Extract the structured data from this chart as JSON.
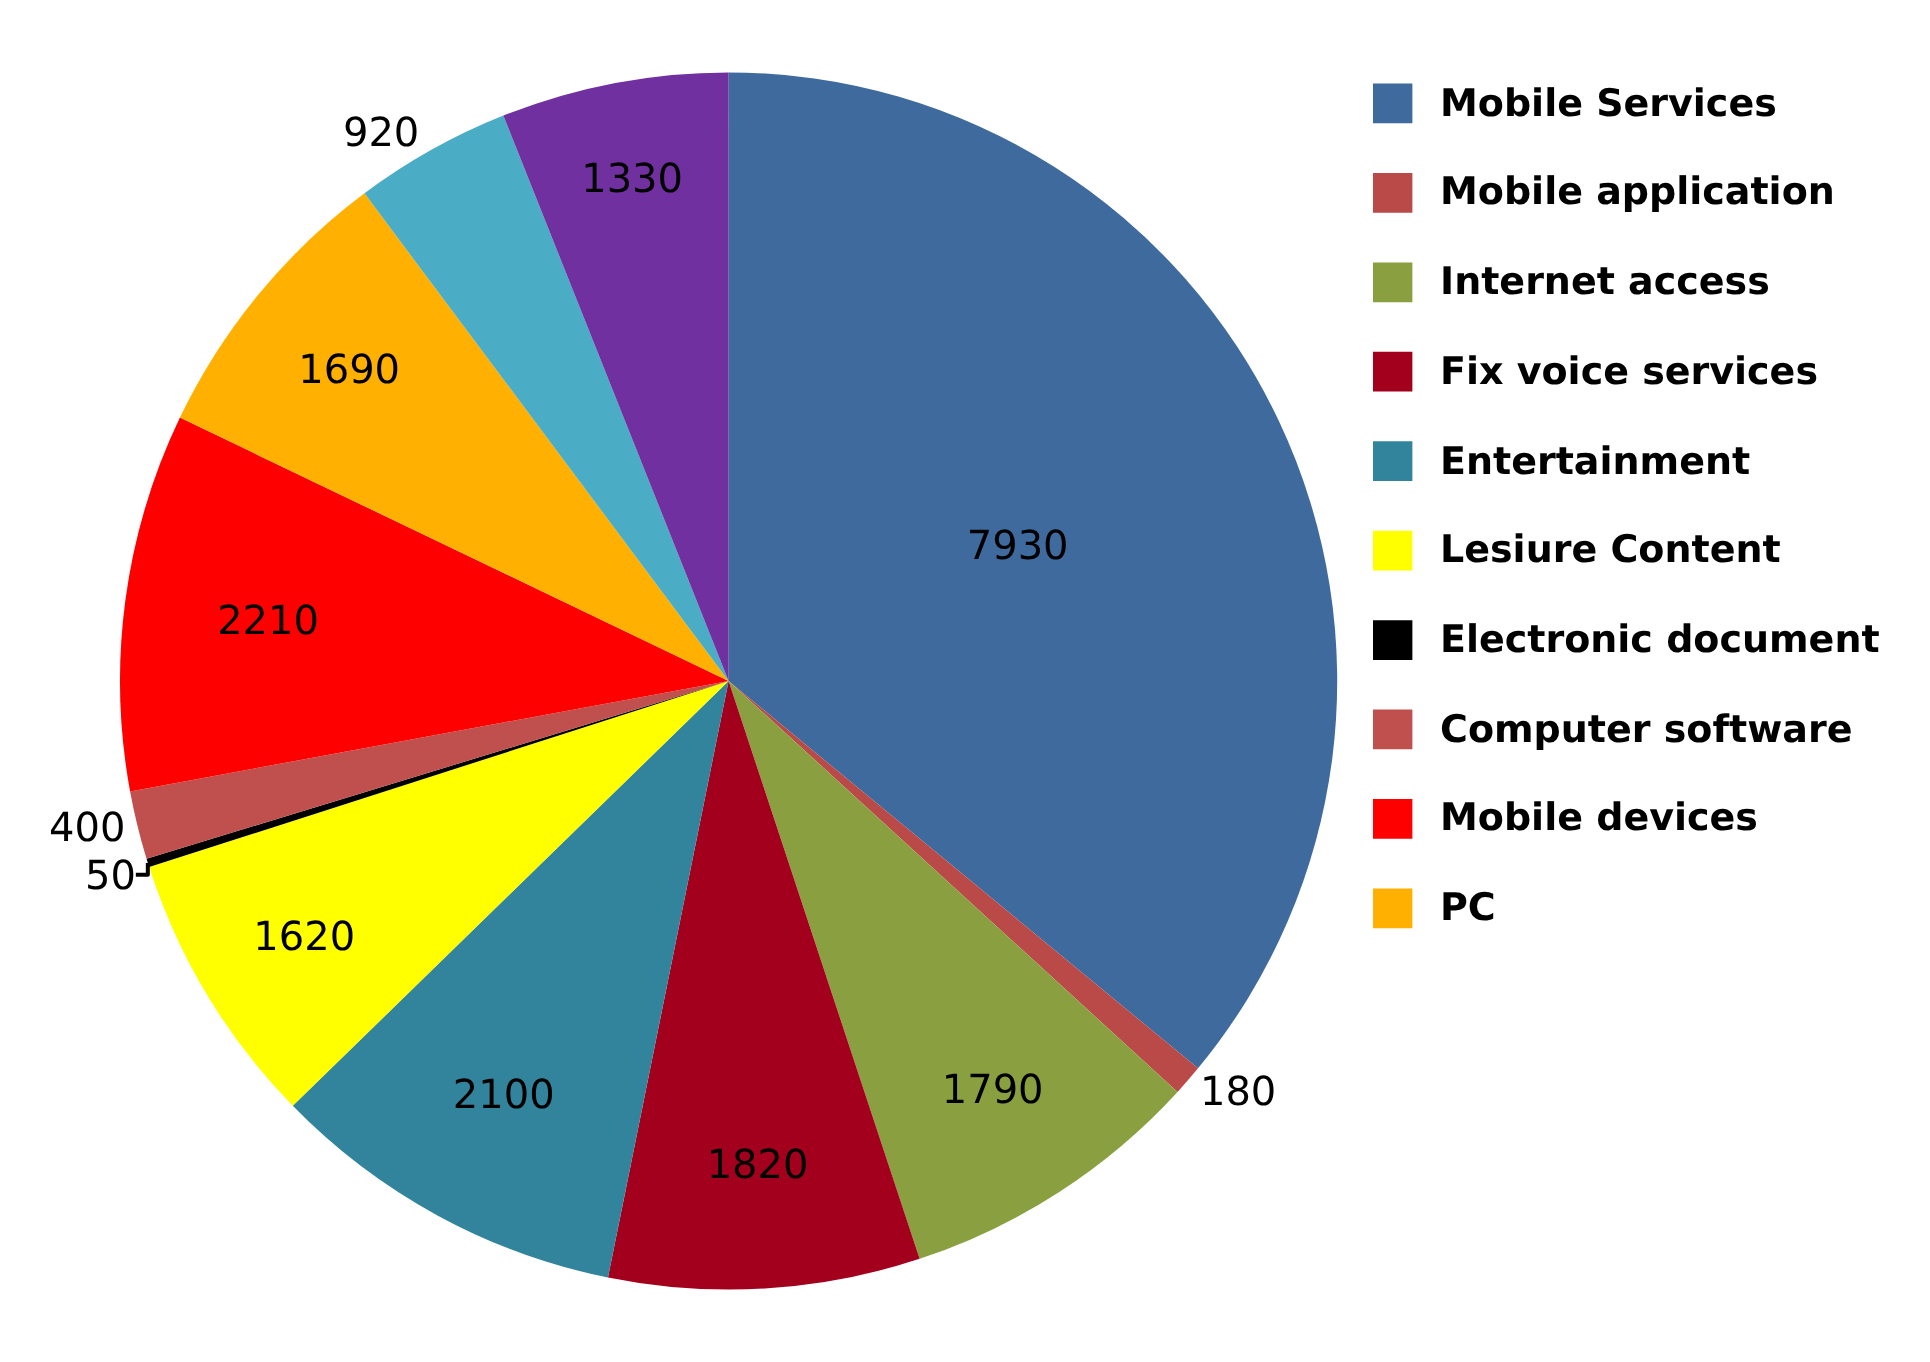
{
  "chart_data": {
    "type": "pie",
    "categories": [
      "Mobile Services",
      "Mobile application",
      "Internet access",
      "Fix voice services",
      "Entertainment",
      "Lesiure Content",
      "Electronic document",
      "Computer software",
      "Mobile devices",
      "PC",
      null,
      null
    ],
    "values": [
      7930,
      180,
      1790,
      1820,
      2100,
      1620,
      50,
      400,
      2210,
      1690,
      920,
      1330
    ],
    "colors": [
      "#3f6a9e",
      "#b94a48",
      "#8aa040",
      "#a3001e",
      "#31849b",
      "#ffff00",
      "#000000",
      "#c0504d",
      "#ff0000",
      "#ffb000",
      "#4bacc6",
      "#7030a0"
    ],
    "data_labels": true,
    "legend": "right"
  }
}
